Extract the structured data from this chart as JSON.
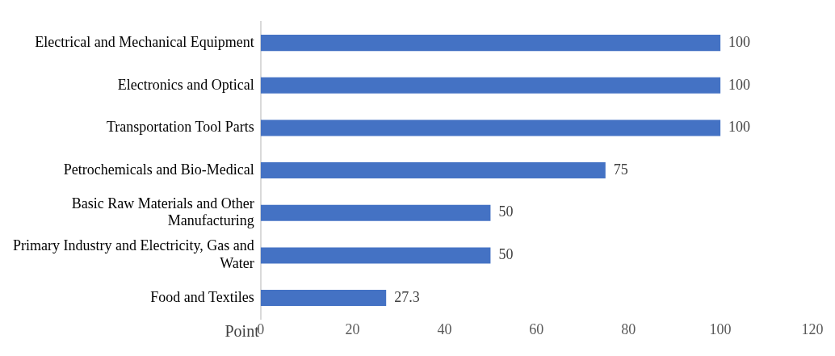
{
  "chart_data": {
    "type": "bar",
    "orientation": "horizontal",
    "xlabel": "Point",
    "categories": [
      "Electrical and Mechanical Equipment",
      "Electronics and Optical",
      "Transportation Tool Parts",
      "Petrochemicals and Bio-Medical",
      "Basic Raw Materials and Other Manufacturing",
      "Primary Industry and Electricity, Gas and Water",
      "Food and Textiles"
    ],
    "values": [
      100,
      100,
      100,
      75,
      50,
      50,
      27.3
    ],
    "color": "#4472c4",
    "xlim": [
      0,
      120
    ],
    "xticks": [
      0,
      20,
      40,
      60,
      80,
      100,
      120
    ],
    "grid": false,
    "legend": false,
    "data_labels": true
  }
}
